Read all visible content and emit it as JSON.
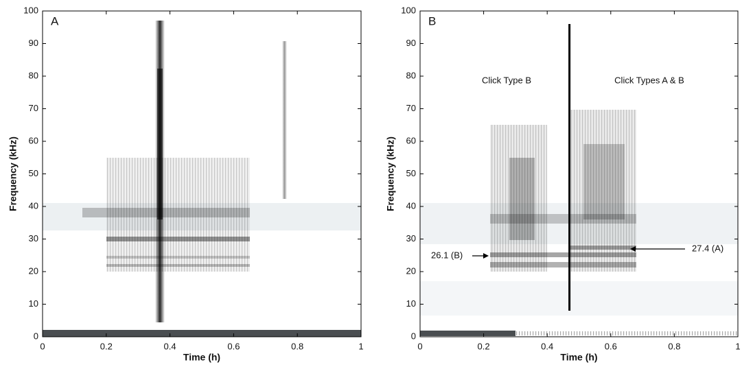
{
  "chart_data": [
    {
      "type": "spectrogram",
      "panel_label": "A",
      "xlabel": "Time (h)",
      "ylabel": "Frequency (kHz)",
      "xlim": [
        0,
        1
      ],
      "ylim": [
        0,
        100
      ],
      "xticks": [
        0,
        0.2,
        0.4,
        0.6,
        0.8,
        1
      ],
      "yticks": [
        0,
        10,
        20,
        30,
        40,
        50,
        60,
        70,
        80,
        90,
        100
      ]
    },
    {
      "type": "spectrogram",
      "panel_label": "B",
      "xlabel": "Time (h)",
      "ylabel": "Frequency (kHz)",
      "xlim": [
        0,
        1
      ],
      "ylim": [
        0,
        100
      ],
      "xticks": [
        0,
        0.2,
        0.4,
        0.6,
        0.8,
        1
      ],
      "yticks": [
        0,
        10,
        20,
        30,
        40,
        50,
        60,
        70,
        80,
        90,
        100
      ],
      "annotations": [
        "Click Type B",
        "Click Types A & B",
        "26.1 (B)",
        "27.4 (A)"
      ]
    }
  ]
}
